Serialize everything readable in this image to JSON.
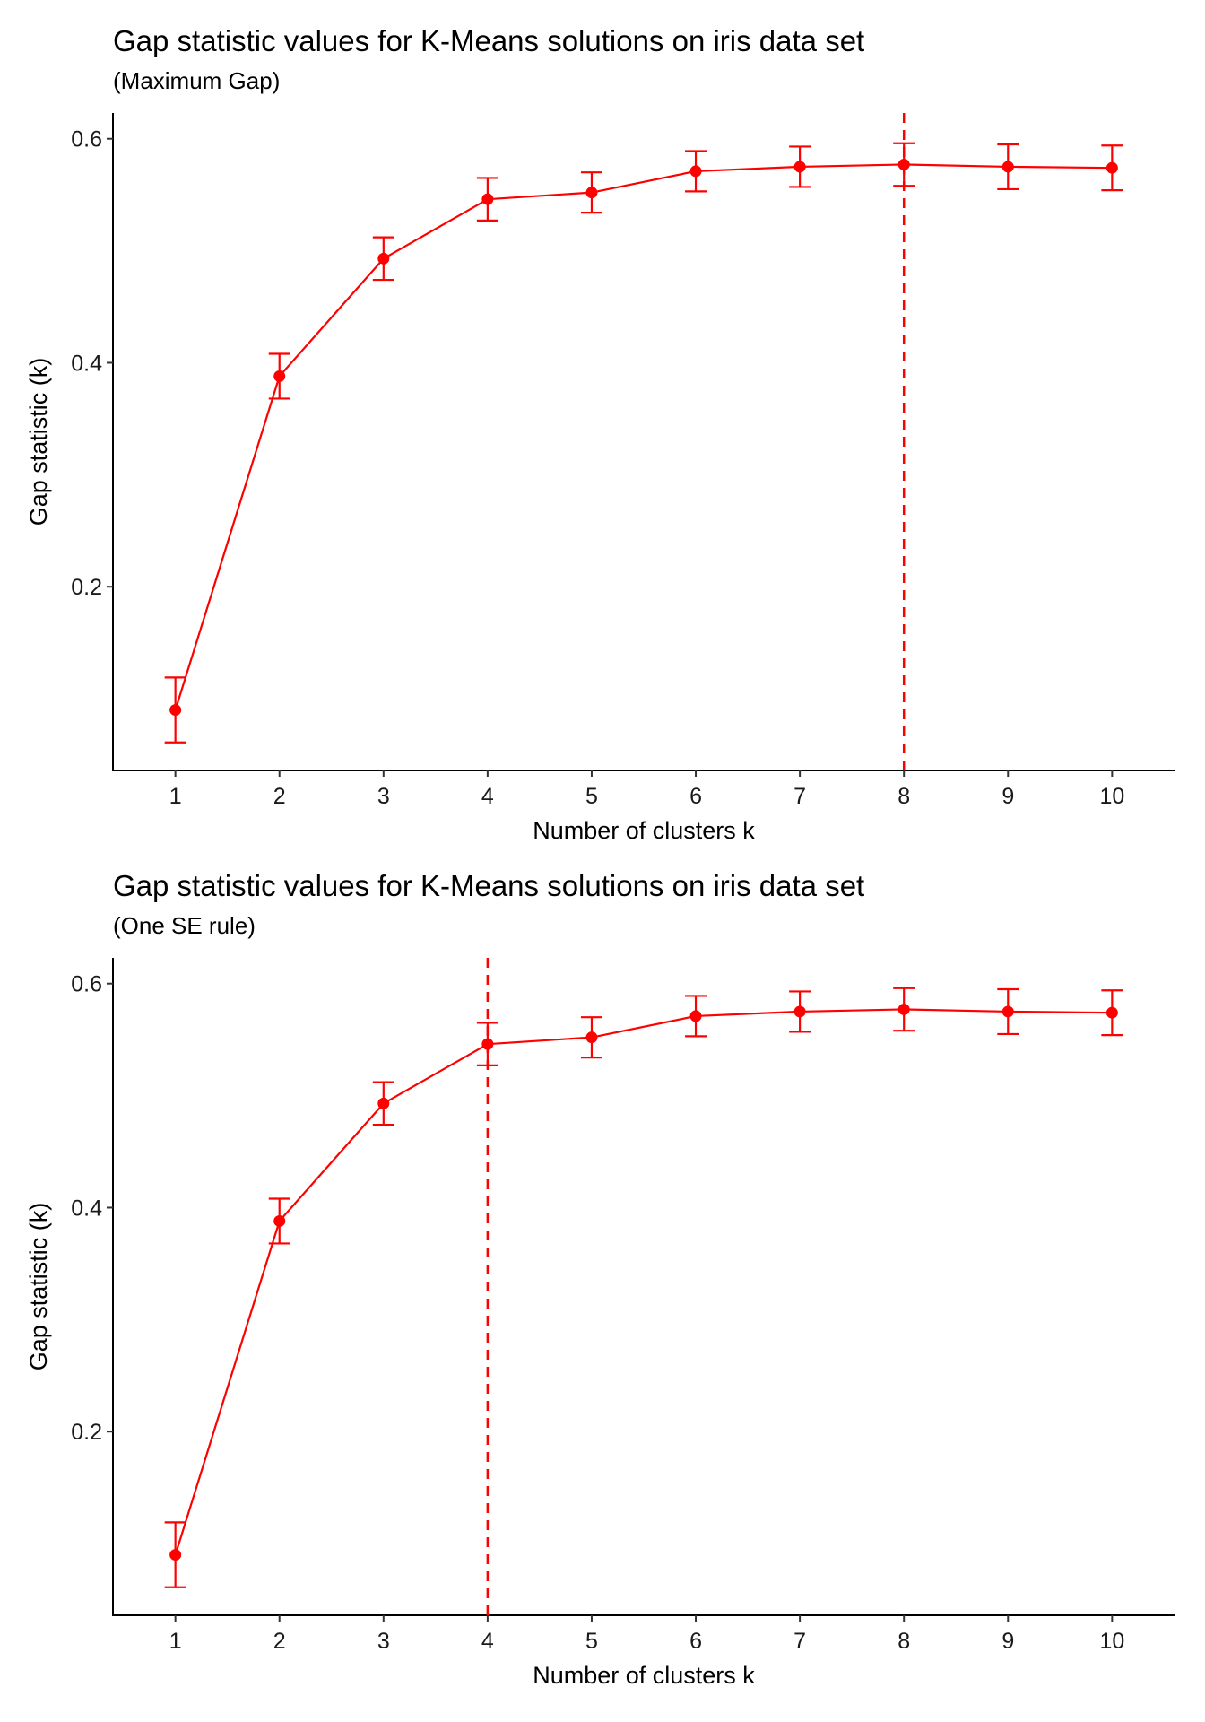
{
  "chart_data": [
    {
      "type": "line",
      "title": "Gap statistic values for K-Means solutions on iris data set",
      "subtitle": "(Maximum Gap)",
      "xlabel": "Number of clusters k",
      "ylabel": "Gap statistic (k)",
      "x": [
        1,
        2,
        3,
        4,
        5,
        6,
        7,
        8,
        9,
        10
      ],
      "x_tick_labels": [
        "1",
        "2",
        "3",
        "4",
        "5",
        "6",
        "7",
        "8",
        "9",
        "10"
      ],
      "y_ticks": [
        0.2,
        0.4,
        0.6
      ],
      "y_tick_labels": [
        "0.2",
        "0.4",
        "0.6"
      ],
      "xlim": [
        0.4,
        10.6
      ],
      "ylim": [
        0.036,
        0.623
      ],
      "series": [
        {
          "name": "gap",
          "values": [
            0.09,
            0.388,
            0.493,
            0.546,
            0.552,
            0.571,
            0.575,
            0.577,
            0.575,
            0.574
          ],
          "se": [
            0.029,
            0.02,
            0.019,
            0.019,
            0.018,
            0.018,
            0.018,
            0.019,
            0.02,
            0.02
          ]
        }
      ],
      "vline_x": 8,
      "color": "#ff0000",
      "grid": false
    },
    {
      "type": "line",
      "title": "Gap statistic values for K-Means solutions on iris data set",
      "subtitle": "(One SE rule)",
      "xlabel": "Number of clusters k",
      "ylabel": "Gap statistic (k)",
      "x": [
        1,
        2,
        3,
        4,
        5,
        6,
        7,
        8,
        9,
        10
      ],
      "x_tick_labels": [
        "1",
        "2",
        "3",
        "4",
        "5",
        "6",
        "7",
        "8",
        "9",
        "10"
      ],
      "y_ticks": [
        0.2,
        0.4,
        0.6
      ],
      "y_tick_labels": [
        "0.2",
        "0.4",
        "0.6"
      ],
      "xlim": [
        0.4,
        10.6
      ],
      "ylim": [
        0.036,
        0.623
      ],
      "series": [
        {
          "name": "gap",
          "values": [
            0.09,
            0.388,
            0.493,
            0.546,
            0.552,
            0.571,
            0.575,
            0.577,
            0.575,
            0.574
          ],
          "se": [
            0.029,
            0.02,
            0.019,
            0.019,
            0.018,
            0.018,
            0.018,
            0.019,
            0.02,
            0.02
          ]
        }
      ],
      "vline_x": 4,
      "color": "#ff0000",
      "grid": false
    }
  ]
}
